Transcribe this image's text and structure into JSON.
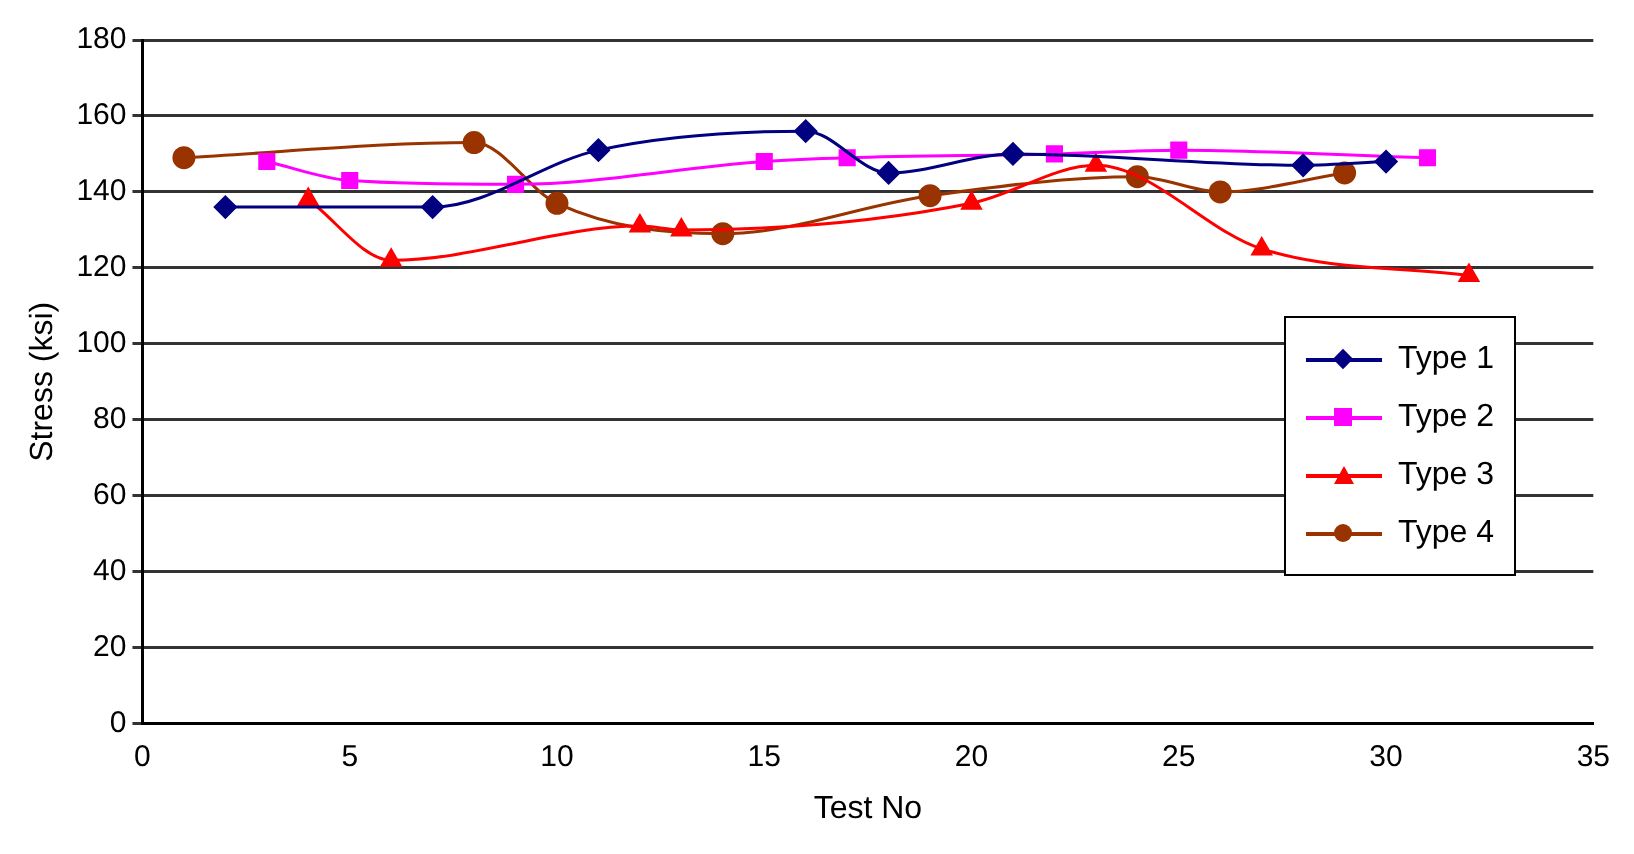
{
  "chart_data": {
    "type": "line",
    "xlabel": "Test No",
    "ylabel": "Stress (ksi)",
    "xlim": [
      0,
      35
    ],
    "xticks": [
      0,
      5,
      10,
      15,
      20,
      25,
      30,
      35
    ],
    "ylim": [
      0,
      180
    ],
    "yticks": [
      0,
      20,
      40,
      60,
      80,
      100,
      120,
      140,
      160,
      180
    ],
    "grid": "y",
    "legend": "right",
    "series": [
      {
        "name": "Type 1",
        "color": "#000080",
        "marker": "diamond",
        "x": [
          2,
          7,
          11,
          16,
          18,
          21,
          28,
          30
        ],
        "values": [
          136,
          136,
          151,
          156,
          145,
          150,
          147,
          148
        ]
      },
      {
        "name": "Type 2",
        "color": "#ff00ff",
        "marker": "square",
        "x": [
          3,
          5,
          9,
          15,
          17,
          22,
          25,
          31
        ],
        "values": [
          148,
          143,
          142,
          148,
          149,
          150,
          151,
          149
        ]
      },
      {
        "name": "Type 3",
        "color": "#ff0000",
        "marker": "triangle",
        "x": [
          4,
          6,
          12,
          13,
          20,
          23,
          27,
          32
        ],
        "values": [
          138,
          122,
          131,
          130,
          137,
          147,
          125,
          118
        ]
      },
      {
        "name": "Type 4",
        "color": "#993300",
        "marker": "circle",
        "x": [
          1,
          8,
          10,
          14,
          19,
          24,
          26,
          29
        ],
        "values": [
          149,
          153,
          137,
          129,
          139,
          144,
          140,
          145
        ]
      }
    ]
  }
}
